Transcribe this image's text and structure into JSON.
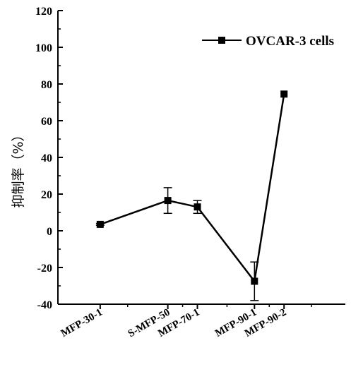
{
  "chart_data": {
    "type": "line",
    "title": "",
    "ylabel": "抑制率（%）",
    "xlabel": "",
    "categories": [
      "MFP-30-1",
      "S-MFP-50",
      "MFP-70-1",
      "MFP-90-1",
      "MFP-90-2"
    ],
    "x": [
      1.0,
      2.6,
      3.3,
      4.65,
      5.35
    ],
    "xlim": [
      0,
      6.8
    ],
    "ylim": [
      -40,
      120
    ],
    "yticks": [
      -40,
      -20,
      0,
      20,
      40,
      60,
      80,
      100,
      120
    ],
    "ytick_labels": [
      "-40",
      "-20",
      "0",
      "20",
      "40",
      "60",
      "80",
      "100",
      "120"
    ],
    "series": [
      {
        "name": "OVCAR-3 cells",
        "values": [
          3.5,
          16.5,
          13,
          -27.5,
          74.5
        ],
        "errors": [
          0.5,
          7,
          3.5,
          10.5,
          0
        ],
        "color": "#000000",
        "marker": "square"
      }
    ],
    "legend_position": "top-right",
    "grid": false
  }
}
